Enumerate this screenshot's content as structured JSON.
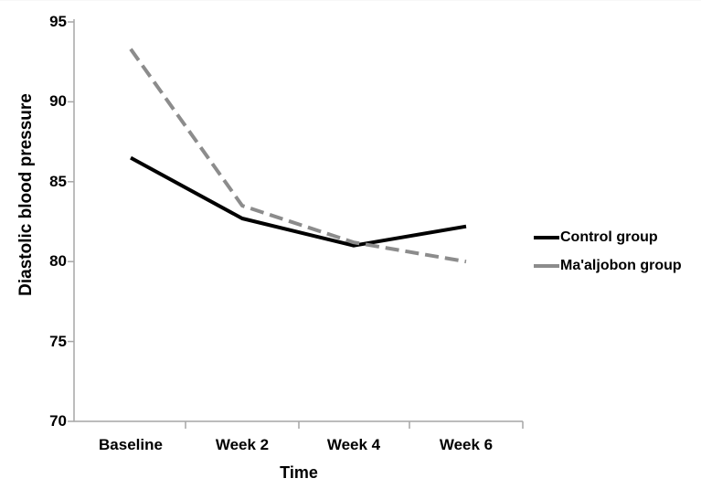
{
  "chart_data": {
    "type": "line",
    "title": "",
    "xlabel": "Time",
    "ylabel": "Diastolic blood pressure",
    "categories": [
      "Baseline",
      "Week 2",
      "Week 4",
      "Week 6"
    ],
    "series": [
      {
        "name": "Control group",
        "values": [
          86.5,
          82.7,
          81.0,
          82.2
        ],
        "color": "#000000",
        "dash": "solid"
      },
      {
        "name": "Ma'aljobon group",
        "values": [
          93.3,
          83.5,
          81.2,
          80.0
        ],
        "color": "#8c8c8c",
        "dash": "dashed"
      }
    ],
    "ylim": [
      70,
      95
    ],
    "ytick_step": 5,
    "y_tick_labels": [
      "95",
      "90",
      "85",
      "80",
      "75",
      "70"
    ],
    "grid": false,
    "legend_position": "right"
  },
  "theme": {
    "axis_color": "#a6a6a6",
    "text_color": "#000000",
    "background": "#ffffff"
  }
}
